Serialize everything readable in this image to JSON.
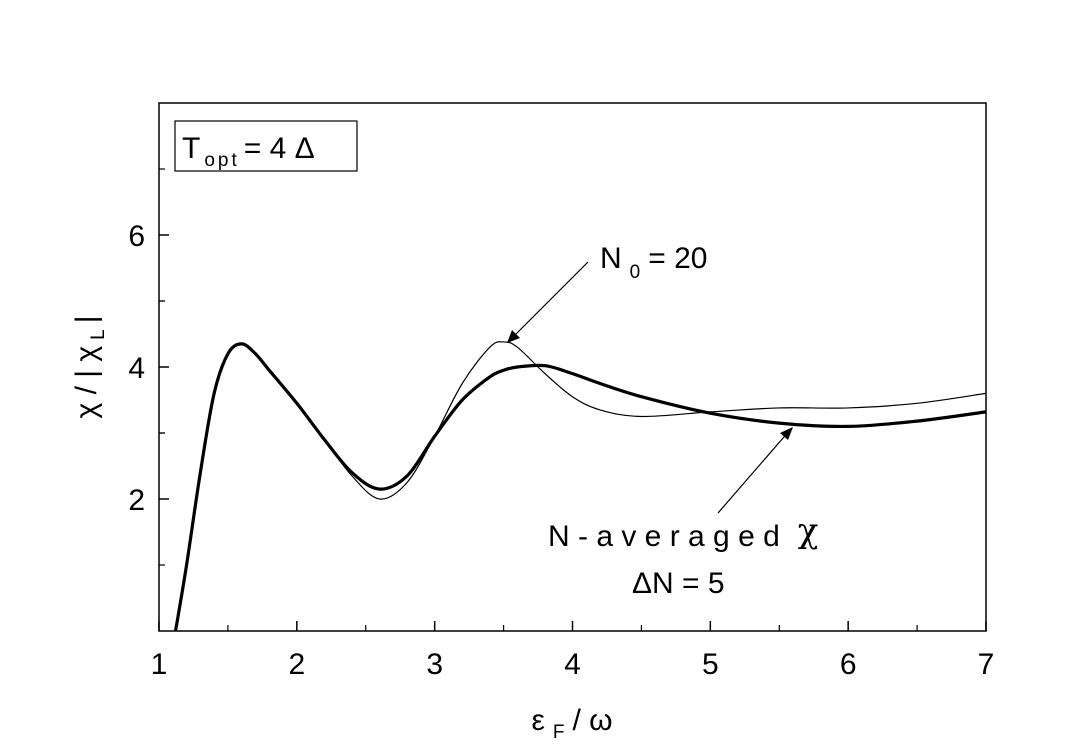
{
  "chart_data": {
    "type": "line",
    "x": [
      1.12,
      1.2,
      1.3,
      1.4,
      1.5,
      1.6,
      1.7,
      1.8,
      2.0,
      2.2,
      2.4,
      2.6,
      2.8,
      3.0,
      3.2,
      3.4,
      3.5,
      3.6,
      3.8,
      4.0,
      4.2,
      4.5,
      5.0,
      5.5,
      6.0,
      6.5,
      7.0
    ],
    "series": [
      {
        "name": "N-averaged",
        "color": "#000000",
        "width": 3.2,
        "values": [
          0,
          1.0,
          2.4,
          3.6,
          4.2,
          4.35,
          4.2,
          3.95,
          3.45,
          2.9,
          2.4,
          2.15,
          2.35,
          2.95,
          3.5,
          3.85,
          3.95,
          4.0,
          4.02,
          3.9,
          3.75,
          3.55,
          3.3,
          3.15,
          3.1,
          3.18,
          3.32
        ]
      },
      {
        "name": "N0 = 20",
        "color": "#000000",
        "width": 1.2,
        "values": [
          0,
          1.0,
          2.4,
          3.6,
          4.2,
          4.35,
          4.2,
          3.95,
          3.45,
          2.9,
          2.35,
          2.0,
          2.25,
          2.95,
          3.75,
          4.3,
          4.38,
          4.3,
          3.9,
          3.55,
          3.35,
          3.25,
          3.32,
          3.38,
          3.38,
          3.45,
          3.6
        ]
      }
    ],
    "xlim": [
      1,
      7
    ],
    "ylim": [
      0,
      8
    ],
    "xticks": [
      1,
      2,
      3,
      4,
      5,
      6,
      7
    ],
    "yticks": [
      2,
      4,
      6
    ],
    "xlabel": {
      "main": "ε",
      "sub": "F",
      "end": "/ ω"
    },
    "ylabel": {
      "main": "χ / | χ",
      "sub": "L",
      "end": "|"
    },
    "legend_box": {
      "main": "T",
      "sub": "opt",
      "end": "= 4 Δ"
    },
    "annotations": [
      {
        "main": "N",
        "sub": "0",
        "end": "= 20"
      },
      {
        "main": "N - a v e r a g e d",
        "end": "χ"
      },
      {
        "main": "ΔN = 5"
      }
    ]
  }
}
